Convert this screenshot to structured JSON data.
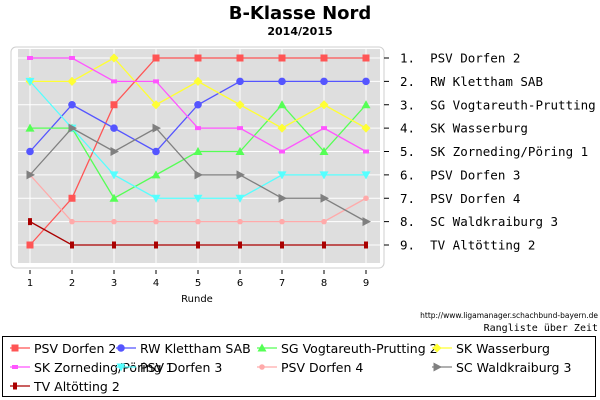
{
  "chart_data": {
    "type": "line",
    "title": "B-Klasse Nord",
    "subtitle": "2014/2015",
    "xlabel": "Runde",
    "x": [
      1,
      2,
      3,
      4,
      5,
      6,
      7,
      8,
      9
    ],
    "ylim": [
      1,
      9
    ],
    "y_inverted": true,
    "grid": true,
    "legend_position": "bottom",
    "source_text": "http://www.ligamanager.schachbund-bayern.de",
    "caption": "Rangliste über Zeit",
    "final_ranking_labels": [
      "1.  PSV Dorfen 2",
      "2.  RW Klettham SAB",
      "3.  SG Vogtareuth-Prutting 2",
      "4.  SK Wasserburg",
      "5.  SK Zorneding/Pöring 1",
      "6.  PSV Dorfen 3",
      "7.  PSV Dorfen 4",
      "8.  SC Waldkraiburg 3",
      "9.  TV Altötting 2"
    ],
    "series": [
      {
        "name": "PSV Dorfen 2",
        "color": "#ff5555",
        "marker": "square",
        "values": [
          9,
          7,
          3,
          1,
          1,
          1,
          1,
          1,
          1
        ]
      },
      {
        "name": "RW Klettham SAB",
        "color": "#5555ff",
        "marker": "circle",
        "values": [
          5,
          3,
          4,
          5,
          3,
          2,
          2,
          2,
          2
        ]
      },
      {
        "name": "SG Vogtareuth-Prutting 2",
        "color": "#55ff55",
        "marker": "triangle-up",
        "values": [
          4,
          4,
          7,
          6,
          5,
          5,
          3,
          5,
          3
        ]
      },
      {
        "name": "SK Wasserburg",
        "color": "#ffff33",
        "marker": "diamond",
        "values": [
          2,
          2,
          1,
          3,
          2,
          3,
          4,
          3,
          4
        ]
      },
      {
        "name": "SK Zorneding/Pöring 1",
        "color": "#ff55ff",
        "marker": "square-small",
        "values": [
          1,
          1,
          2,
          2,
          4,
          4,
          5,
          4,
          5
        ]
      },
      {
        "name": "PSV Dorfen 3",
        "color": "#55ffff",
        "marker": "triangle-down",
        "values": [
          2,
          4,
          6,
          7,
          7,
          7,
          6,
          6,
          6
        ]
      },
      {
        "name": "PSV Dorfen 4",
        "color": "#ffaaaa",
        "marker": "circle-small",
        "values": [
          6,
          8,
          8,
          8,
          8,
          8,
          8,
          8,
          7
        ]
      },
      {
        "name": "SC Waldkraiburg 3",
        "color": "#808080",
        "marker": "triangle-right",
        "values": [
          6,
          4,
          5,
          4,
          6,
          6,
          7,
          7,
          8
        ]
      },
      {
        "name": "TV Altötting 2",
        "color": "#aa0000",
        "marker": "hbar",
        "values": [
          8,
          9,
          9,
          9,
          9,
          9,
          9,
          9,
          9
        ]
      }
    ]
  }
}
